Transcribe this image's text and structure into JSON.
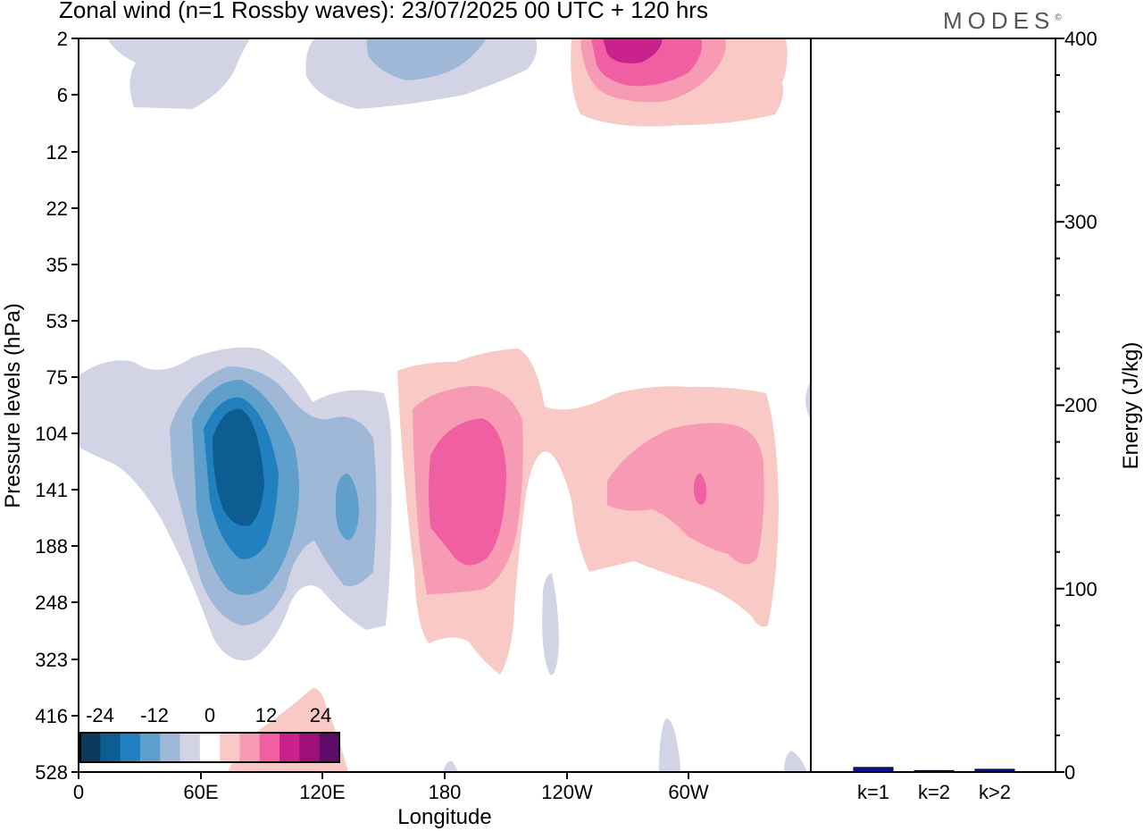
{
  "title": "Zonal wind (n=1 Rossby waves):  23/07/2025  00 UTC  + 120 hrs",
  "brand": "MODES",
  "brand_mark": "©",
  "chart_data": [
    {
      "type": "heatmap",
      "title": "Zonal wind (n=1 Rossby waves):  23/07/2025  00 UTC  + 120 hrs",
      "xlabel": "Longitude",
      "ylabel": "Pressure levels (hPa)",
      "x_ticks": [
        "0",
        "60E",
        "120E",
        "180",
        "120W",
        "60W"
      ],
      "x_tick_values": [
        0,
        60,
        120,
        180,
        240,
        300
      ],
      "xlim": [
        0,
        360
      ],
      "y_ticks": [
        "2",
        "6",
        "12",
        "22",
        "35",
        "53",
        "75",
        "104",
        "141",
        "188",
        "248",
        "323",
        "416",
        "528"
      ],
      "colorbar_labels": [
        "-24",
        "-12",
        "0",
        "12",
        "24"
      ],
      "colorbar_colors": [
        "#0b3a5c",
        "#0e5d92",
        "#2180bf",
        "#5f9fcc",
        "#9fb8d8",
        "#d2d4e6",
        "#ffffff",
        "#f9c9c5",
        "#f79bb4",
        "#ef5fa2",
        "#c9228d",
        "#9d1078",
        "#5e0c6a"
      ],
      "features": [
        {
          "label": "easterly max, upper",
          "lon": 145,
          "level": "2",
          "value": -12
        },
        {
          "label": "westerly max, upper",
          "lon": 260,
          "level": "2",
          "value": 20
        },
        {
          "label": "easterly core",
          "lon": 78,
          "level": "141",
          "value": -24
        },
        {
          "label": "easterly secondary",
          "lon": 128,
          "level": "141",
          "value": -16
        },
        {
          "label": "westerly core",
          "lon": 190,
          "level": "141",
          "value": 16
        },
        {
          "label": "westerly secondary",
          "lon": 305,
          "level": "141",
          "value": 16
        }
      ]
    },
    {
      "type": "bar",
      "ylabel": "Energy (J/kg)",
      "categories": [
        "k=1",
        "k=2",
        "k>2"
      ],
      "values": [
        2.5,
        0.8,
        1.5
      ],
      "ylim": [
        0,
        400
      ],
      "y_ticks": [
        0,
        100,
        200,
        300,
        400
      ],
      "bar_color": "#1010a0"
    }
  ]
}
